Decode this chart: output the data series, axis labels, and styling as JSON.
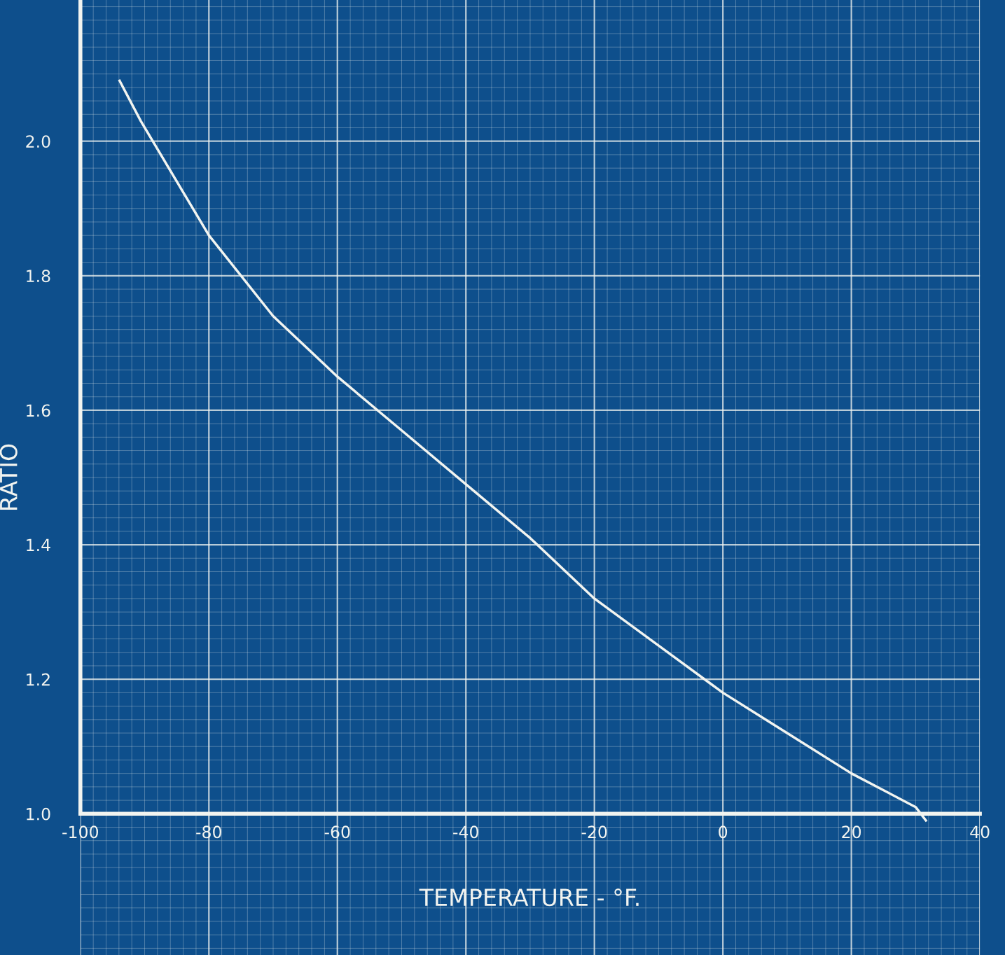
{
  "chart_data": {
    "type": "line",
    "xlabel": "TEMPERATURE - °F.",
    "ylabel": "RATIO",
    "x": [
      -93.9,
      -90.6,
      -80,
      -70,
      -60,
      -50,
      -40,
      -30,
      -20,
      -10,
      0,
      10,
      20,
      30,
      31.6
    ],
    "series": [
      {
        "color": "#f2f4f0",
        "values": [
          2.09,
          2.03,
          1.86,
          1.74,
          1.65,
          1.57,
          1.49,
          1.41,
          1.32,
          1.25,
          1.18,
          1.12,
          1.06,
          1.01,
          0.99
        ]
      }
    ],
    "xlim": [
      -100,
      40
    ],
    "ylim": [
      0.79,
      2.21
    ],
    "xticks": [
      -100,
      -80,
      -60,
      -40,
      -20,
      0,
      20,
      40
    ],
    "yticks": [
      {
        "value": 1.0,
        "label": "1.0"
      },
      {
        "value": 1.2,
        "label": "1.2"
      },
      {
        "value": 1.4,
        "label": "1.4"
      },
      {
        "value": 1.6,
        "label": "1.6"
      },
      {
        "value": 1.8,
        "label": "1.8"
      },
      {
        "value": 2.0,
        "label": "2.0"
      }
    ],
    "grid": true,
    "marker": "none",
    "line_style": "solid",
    "legend": false
  }
}
